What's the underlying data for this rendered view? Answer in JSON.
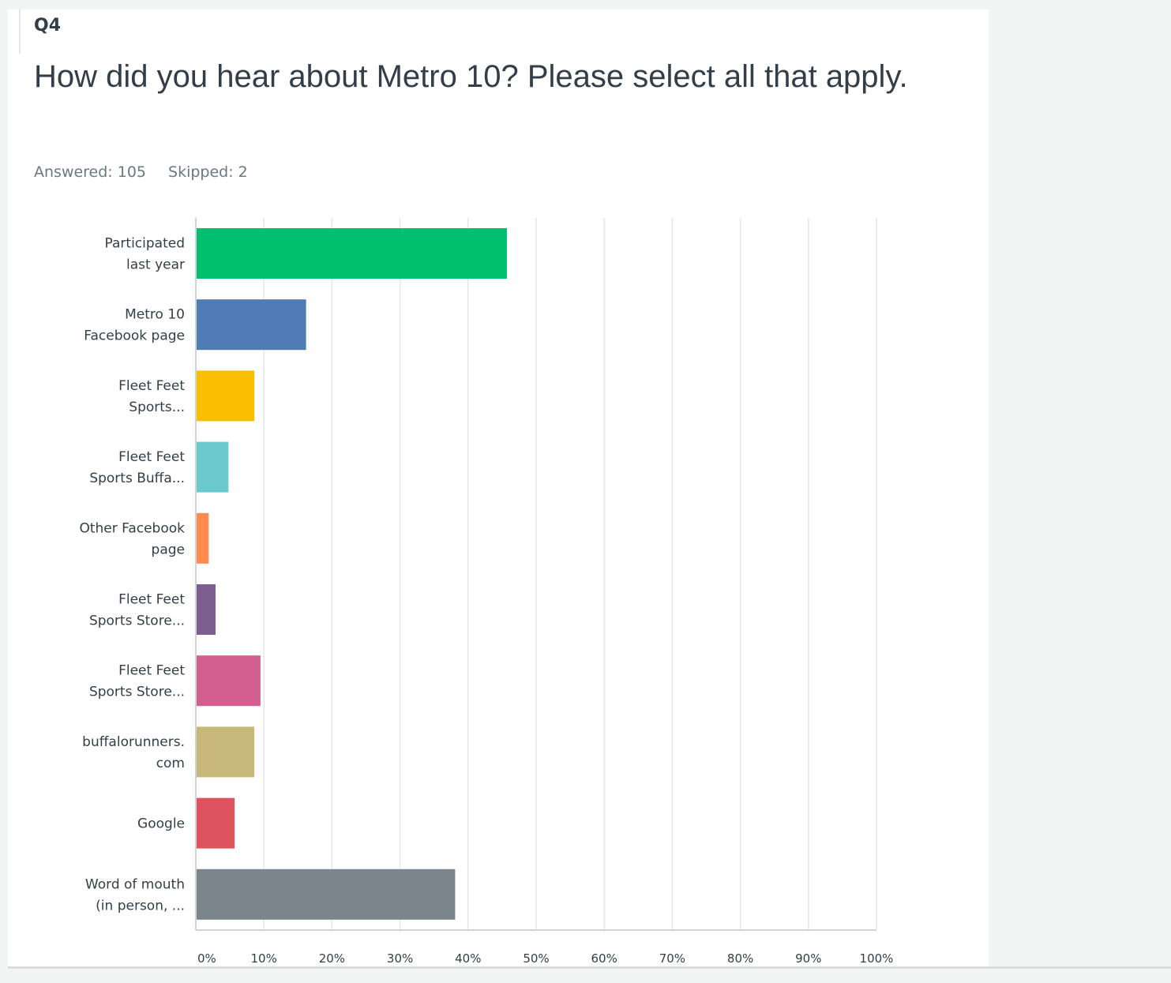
{
  "question": {
    "number": "Q4",
    "title": "How did you hear about Metro 10? Please select all that apply.",
    "answered": "Answered: 105",
    "skipped": "Skipped: 2"
  },
  "chart_data": {
    "type": "bar",
    "orientation": "horizontal",
    "categories": [
      [
        "Participated",
        "last year"
      ],
      [
        "Metro 10",
        "Facebook page"
      ],
      [
        "Fleet Feet",
        "Sports..."
      ],
      [
        "Fleet Feet",
        "Sports Buffa..."
      ],
      [
        "Other Facebook",
        "page"
      ],
      [
        "Fleet Feet",
        "Sports Store..."
      ],
      [
        "Fleet Feet",
        "Sports Store..."
      ],
      [
        "buffalorunners.",
        "com"
      ],
      [
        "Google"
      ],
      [
        "Word of mouth",
        "(in person, ..."
      ]
    ],
    "values": [
      45.7,
      16.2,
      8.6,
      4.8,
      1.9,
      2.9,
      9.5,
      8.6,
      5.7,
      38.1
    ],
    "colors": [
      "#00bf6f",
      "#507cb6",
      "#f9be00",
      "#6bc8cd",
      "#ff8b4f",
      "#7d5e90",
      "#d25f90",
      "#c7b879",
      "#dd5360",
      "#7b868c"
    ],
    "xlim": [
      0,
      100
    ],
    "xticks": [
      "0%",
      "10%",
      "20%",
      "30%",
      "40%",
      "50%",
      "60%",
      "70%",
      "80%",
      "90%",
      "100%"
    ],
    "grid": true
  }
}
